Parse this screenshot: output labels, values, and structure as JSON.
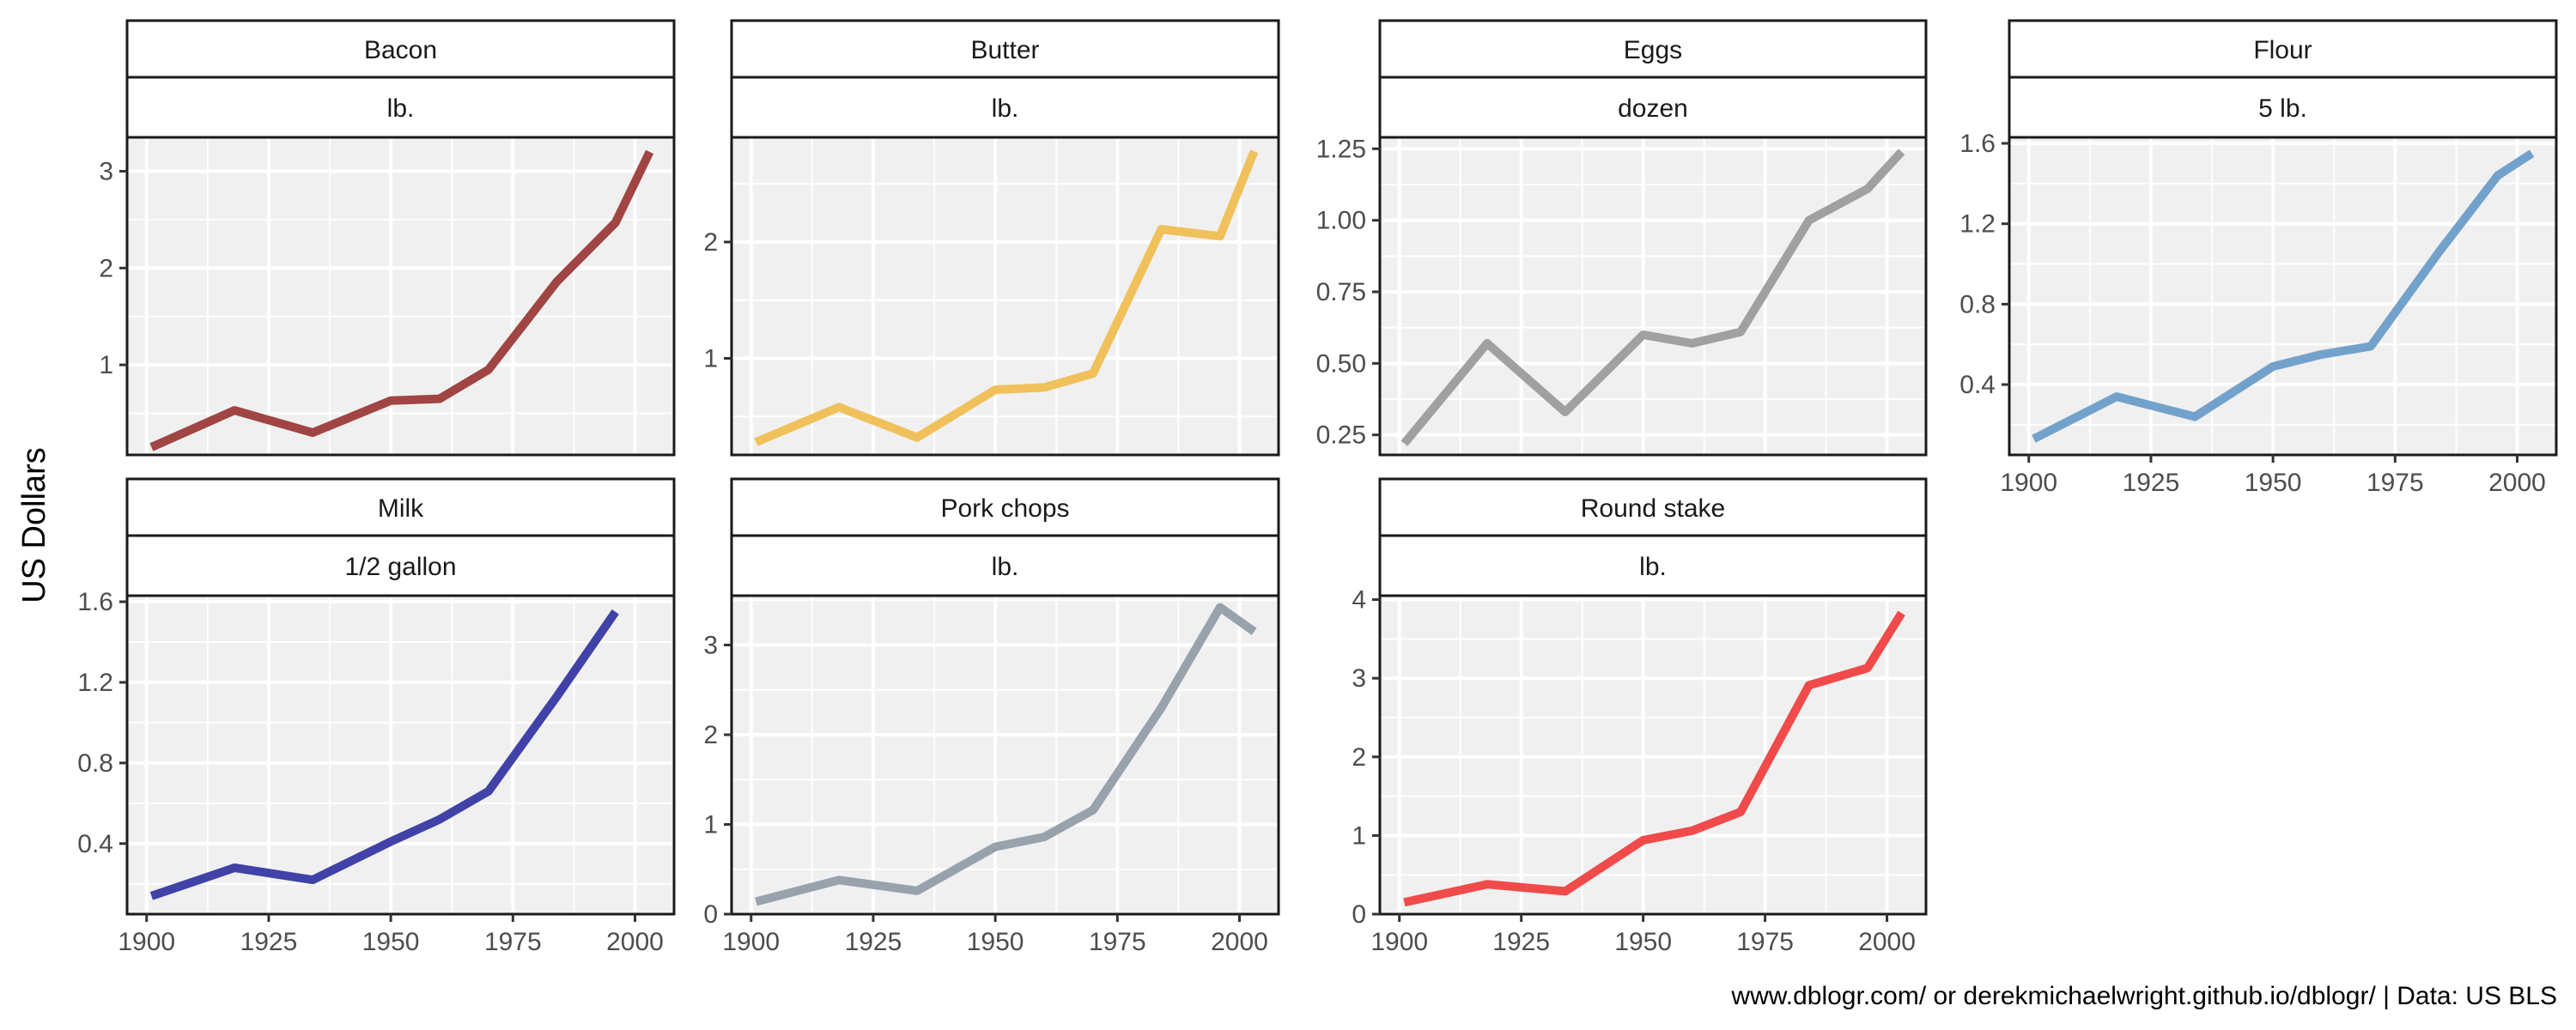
{
  "y_axis_title": "US Dollars",
  "caption": "www.dblogr.com/ or derekmichaelwright.github.io/dblogr/ | Data: US BLS",
  "chart_data": {
    "type": "line",
    "title": "",
    "xlabel": "",
    "ylabel": "US Dollars",
    "x_ticks": [
      1900,
      1925,
      1950,
      1975,
      2000
    ],
    "xlim": [
      1896,
      2008
    ],
    "grid": true,
    "legend": "none",
    "x": [
      1901,
      1918,
      1934,
      1950,
      1960,
      1970,
      1984,
      1996,
      2003
    ],
    "panels": [
      {
        "name": "Bacon",
        "unit": "lb.",
        "color": "#A04543",
        "x": [
          1901,
          1918,
          1934,
          1950,
          1960,
          1970,
          1984,
          1996,
          2003
        ],
        "values": [
          0.15,
          0.53,
          0.3,
          0.63,
          0.65,
          0.95,
          1.86,
          2.47,
          3.2
        ],
        "ylim": [
          0.07,
          3.35
        ],
        "y_ticks": [
          1,
          2,
          3
        ]
      },
      {
        "name": "Butter",
        "unit": "lb.",
        "color": "#F0C05A",
        "x": [
          1901,
          1918,
          1934,
          1950,
          1960,
          1970,
          1984,
          1996,
          2003
        ],
        "values": [
          0.28,
          0.58,
          0.32,
          0.73,
          0.75,
          0.87,
          2.11,
          2.05,
          2.78
        ],
        "ylim": [
          0.17,
          2.9
        ],
        "y_ticks": [
          1,
          2
        ]
      },
      {
        "name": "Eggs",
        "unit": "dozen",
        "color": "#A0A0A0",
        "x": [
          1901,
          1918,
          1934,
          1950,
          1960,
          1970,
          1984,
          1996,
          2003
        ],
        "values": [
          0.22,
          0.57,
          0.33,
          0.6,
          0.57,
          0.61,
          1.0,
          1.11,
          1.24
        ],
        "ylim": [
          0.18,
          1.29
        ],
        "y_ticks": [
          0.25,
          0.5,
          0.75,
          1.0,
          1.25
        ]
      },
      {
        "name": "Flour",
        "unit": "5 lb.",
        "color": "#72A2CB",
        "x": [
          1901,
          1918,
          1934,
          1950,
          1960,
          1970,
          1984,
          1996,
          2003
        ],
        "values": [
          0.13,
          0.34,
          0.24,
          0.49,
          0.55,
          0.59,
          1.06,
          1.44,
          1.55
        ],
        "ylim": [
          0.05,
          1.63
        ],
        "y_ticks": [
          0.4,
          0.8,
          1.2,
          1.6
        ]
      },
      {
        "name": "Milk",
        "unit": "1/2 gallon",
        "color": "#4042A8",
        "x": [
          1901,
          1918,
          1934,
          1950,
          1960,
          1970,
          1984,
          1996
        ],
        "values": [
          0.14,
          0.28,
          0.22,
          0.41,
          0.52,
          0.66,
          1.13,
          1.55
        ],
        "ylim": [
          0.05,
          1.63
        ],
        "y_ticks": [
          0.4,
          0.8,
          1.2,
          1.6
        ]
      },
      {
        "name": "Pork chops",
        "unit": "lb.",
        "color": "#98A2AC",
        "x": [
          1901,
          1918,
          1934,
          1950,
          1960,
          1970,
          1984,
          1996,
          2003
        ],
        "values": [
          0.14,
          0.38,
          0.26,
          0.75,
          0.86,
          1.16,
          2.3,
          3.42,
          3.15
        ],
        "ylim": [
          0,
          3.55
        ],
        "y_ticks": [
          0,
          1,
          2,
          3
        ]
      },
      {
        "name": "Round stake",
        "unit": "lb.",
        "color": "#F04A4A",
        "x": [
          1901,
          1918,
          1934,
          1950,
          1960,
          1970,
          1984,
          1996,
          2003
        ],
        "values": [
          0.15,
          0.38,
          0.29,
          0.94,
          1.06,
          1.3,
          2.91,
          3.13,
          3.83
        ],
        "ylim": [
          0,
          4.05
        ],
        "y_ticks": [
          0,
          1,
          2,
          3,
          4
        ]
      }
    ]
  }
}
